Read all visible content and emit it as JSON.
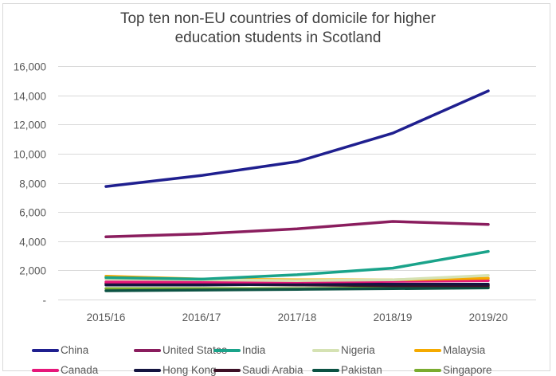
{
  "chart_data": {
    "type": "line",
    "title": "Top ten non-EU countries of domicile for higher education students in Scotland",
    "title_lines": [
      "Top ten non-EU countries of domicile for higher",
      "education students in Scotland"
    ],
    "xlabel": "",
    "ylabel": "",
    "categories": [
      "2015/16",
      "2016/17",
      "2017/18",
      "2018/19",
      "2019/20"
    ],
    "ylim": [
      0,
      16000
    ],
    "yticks": [
      0,
      2000,
      4000,
      6000,
      8000,
      10000,
      12000,
      14000,
      16000
    ],
    "ytick_labels": [
      "-",
      "2,000",
      "4,000",
      "6,000",
      "8,000",
      "10,000",
      "12,000",
      "14,000",
      "16,000"
    ],
    "grid": true,
    "legend_position": "bottom",
    "series": [
      {
        "name": "China",
        "color": "#1f1f8f",
        "values": [
          7750,
          8500,
          9450,
          11400,
          14300
        ]
      },
      {
        "name": "United States",
        "color": "#8a1d5e",
        "values": [
          4300,
          4500,
          4850,
          5350,
          5150
        ]
      },
      {
        "name": "India",
        "color": "#1aa38a",
        "values": [
          1500,
          1400,
          1700,
          2150,
          3300
        ]
      },
      {
        "name": "Nigeria",
        "color": "#d5e2b3",
        "values": [
          1400,
          1350,
          1300,
          1350,
          1650
        ]
      },
      {
        "name": "Malaysia",
        "color": "#f5aa00",
        "values": [
          1600,
          1400,
          1350,
          1350,
          1450
        ]
      },
      {
        "name": "Canada",
        "color": "#e6177a",
        "values": [
          1200,
          1200,
          1200,
          1250,
          1300
        ]
      },
      {
        "name": "Hong Kong",
        "color": "#141440",
        "values": [
          1000,
          1000,
          1050,
          1050,
          1050
        ]
      },
      {
        "name": "Saudi Arabia",
        "color": "#3d1026",
        "values": [
          1100,
          1050,
          1000,
          950,
          950
        ]
      },
      {
        "name": "Pakistan",
        "color": "#0b5243",
        "values": [
          600,
          650,
          700,
          750,
          800
        ]
      },
      {
        "name": "Singapore",
        "color": "#7aac30",
        "values": [
          750,
          750,
          750,
          800,
          850
        ]
      }
    ]
  }
}
